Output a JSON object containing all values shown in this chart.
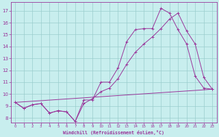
{
  "xlabel": "Windchill (Refroidissement éolien,°C)",
  "background_color": "#c8eeee",
  "line_color": "#993399",
  "grid_color": "#99cccc",
  "xlim": [
    -0.5,
    23.5
  ],
  "ylim": [
    7.6,
    17.7
  ],
  "xticks": [
    0,
    1,
    2,
    3,
    4,
    5,
    6,
    7,
    8,
    9,
    10,
    11,
    12,
    13,
    14,
    15,
    16,
    17,
    18,
    19,
    20,
    21,
    22,
    23
  ],
  "yticks": [
    8,
    9,
    10,
    11,
    12,
    13,
    14,
    15,
    16,
    17
  ],
  "line1_x": [
    0,
    1,
    2,
    3,
    4,
    5,
    6,
    7,
    8,
    9,
    10,
    11,
    12,
    13,
    14,
    15,
    16,
    17,
    18,
    19,
    20,
    21,
    22,
    23
  ],
  "line1_y": [
    9.3,
    8.8,
    9.1,
    9.2,
    8.4,
    8.6,
    8.5,
    7.7,
    9.5,
    9.5,
    11.0,
    11.0,
    12.2,
    14.4,
    15.4,
    15.5,
    15.5,
    17.2,
    16.8,
    15.4,
    14.2,
    11.5,
    10.5,
    10.4
  ],
  "line2_x": [
    0,
    1,
    2,
    3,
    4,
    5,
    6,
    7,
    8,
    9,
    10,
    11,
    12,
    13,
    14,
    15,
    16,
    17,
    18,
    19,
    20,
    21,
    22,
    23
  ],
  "line2_y": [
    9.3,
    8.8,
    9.1,
    9.2,
    8.4,
    8.6,
    8.5,
    7.7,
    9.2,
    9.6,
    10.2,
    10.5,
    11.3,
    12.5,
    13.5,
    14.2,
    14.8,
    15.5,
    16.3,
    16.8,
    15.3,
    14.2,
    11.4,
    10.4
  ],
  "line3_x": [
    0,
    23
  ],
  "line3_y": [
    9.3,
    10.4
  ]
}
